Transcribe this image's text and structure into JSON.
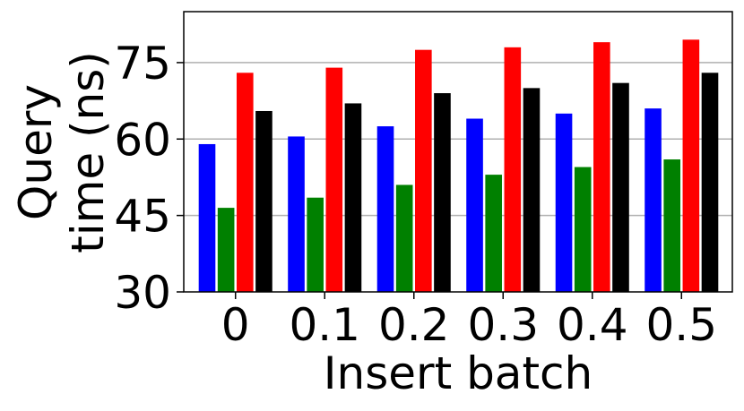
{
  "chart_data": {
    "type": "bar",
    "xlabel": "Insert batch",
    "ylabel_lines": [
      "Query",
      "time (ns)"
    ],
    "categories": [
      "0",
      "0.1",
      "0.2",
      "0.3",
      "0.4",
      "0.5"
    ],
    "ylim": [
      30,
      85
    ],
    "yticks": [
      30,
      45,
      60,
      75
    ],
    "grid": "horizontal",
    "series": [
      {
        "color": "#0000ff",
        "values": [
          59,
          60.5,
          62.5,
          64,
          65,
          66
        ]
      },
      {
        "color": "#008000",
        "values": [
          46.5,
          48.5,
          51,
          53,
          54.5,
          56
        ]
      },
      {
        "color": "#ff0000",
        "values": [
          73,
          74,
          77.5,
          78,
          79,
          79.5
        ]
      },
      {
        "color": "#000000",
        "values": [
          65.5,
          67,
          69,
          70,
          71,
          73
        ]
      }
    ]
  }
}
